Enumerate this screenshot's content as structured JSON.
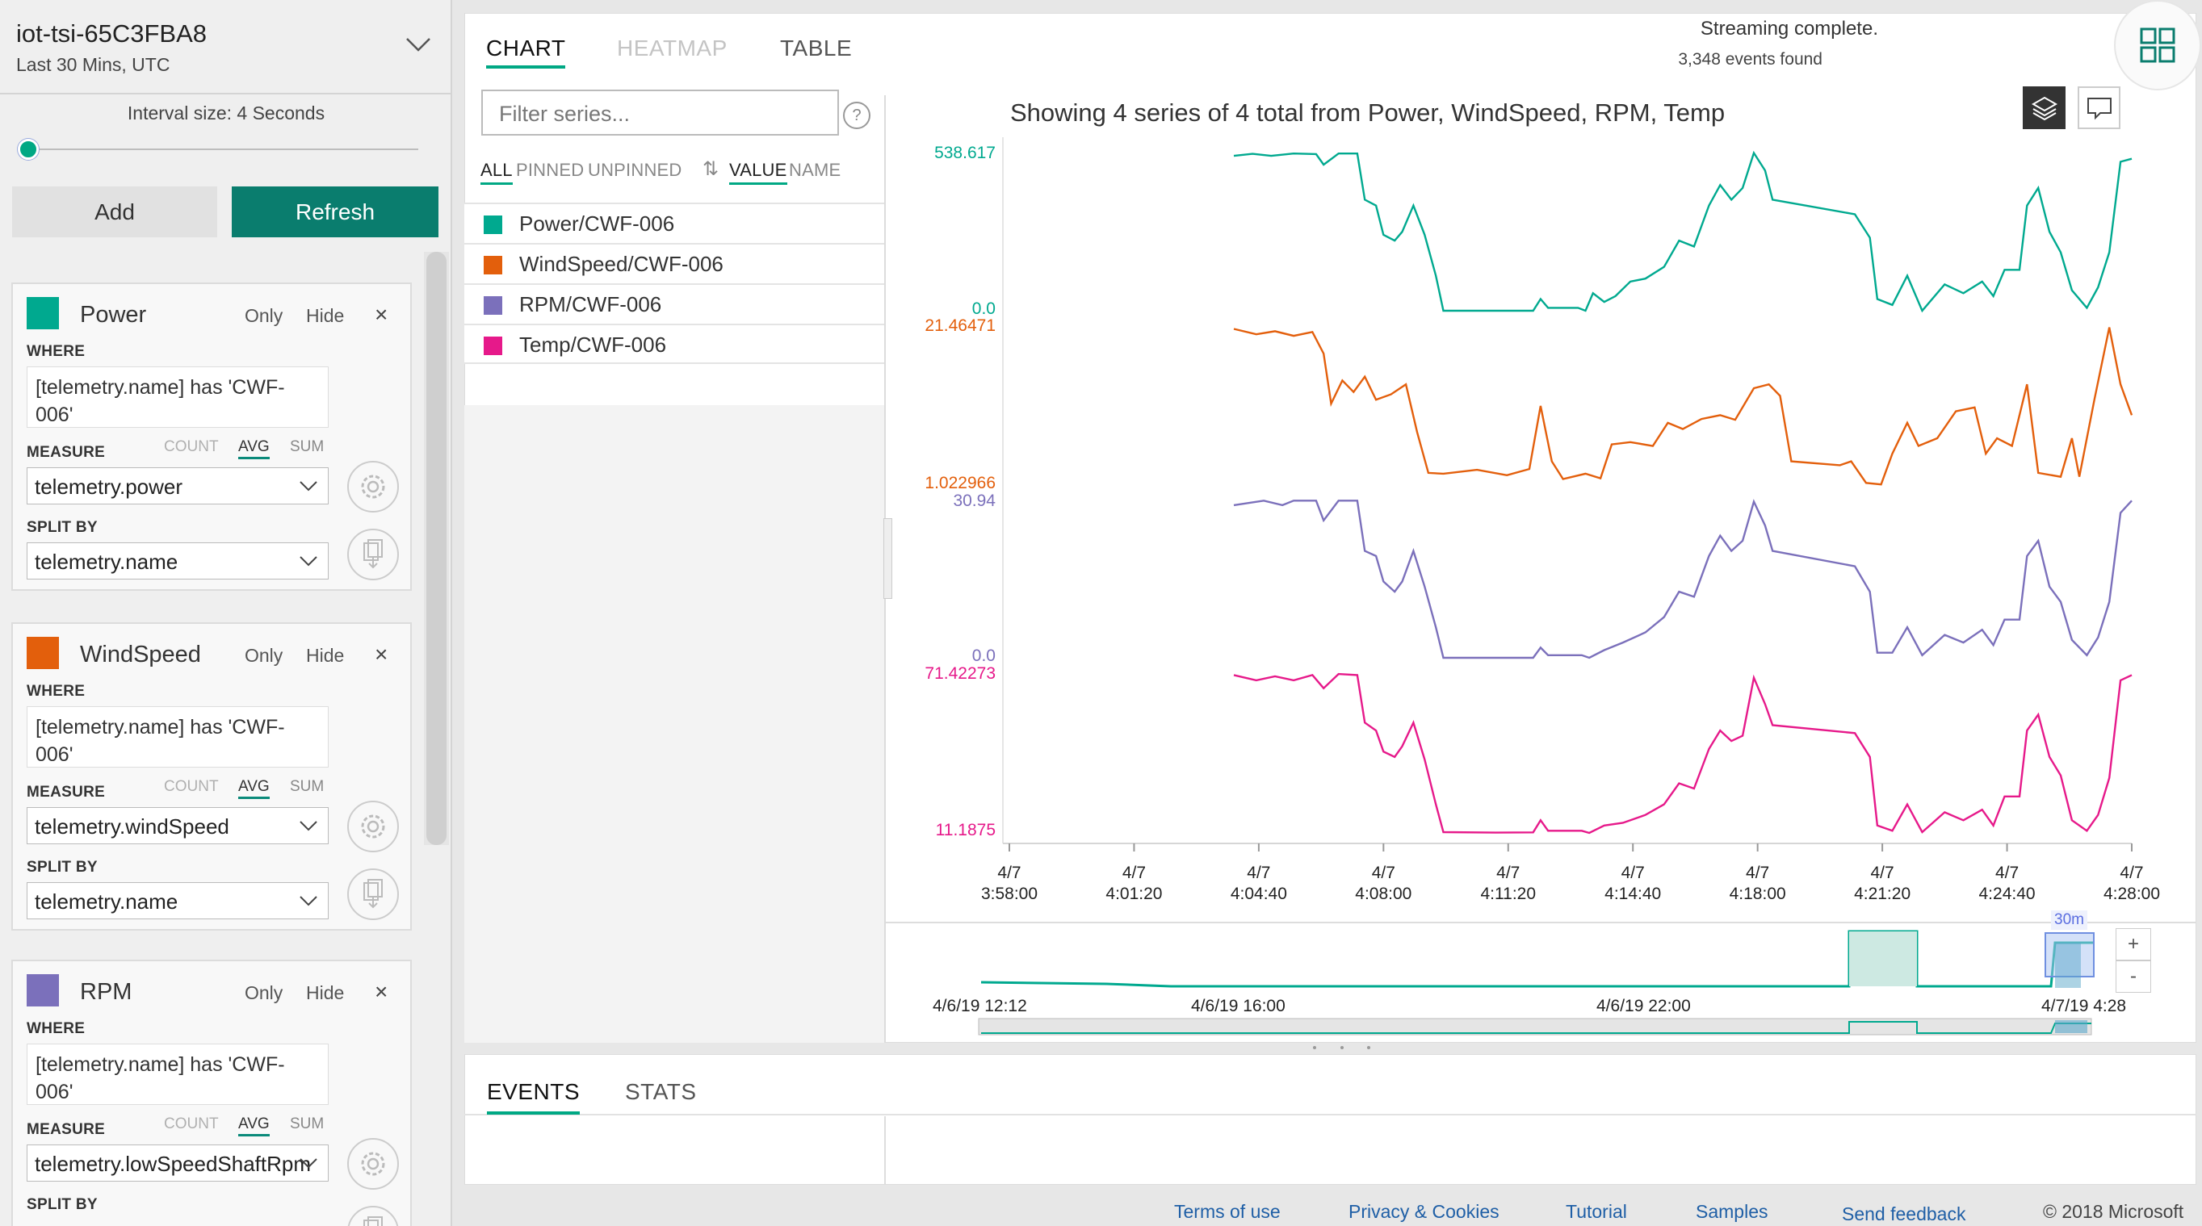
{
  "environment": {
    "name": "iot-tsi-65C3FBA8",
    "time_range": "Last 30 Mins, UTC"
  },
  "interval": {
    "label": "Interval size: 4 Seconds",
    "fraction": 0.0
  },
  "actions": {
    "add": "Add",
    "refresh": "Refresh"
  },
  "labels": {
    "only": "Only",
    "hide": "Hide",
    "close": "×",
    "where": "WHERE",
    "measure": "MEASURE",
    "split_by": "SPLIT BY",
    "count": "COUNT",
    "avg": "AVG",
    "sum": "SUM"
  },
  "cards": [
    {
      "name": "Power",
      "color": "#00a98f",
      "where": "[telemetry.name] has 'CWF-\n006'",
      "measure": "telemetry.power",
      "split": "telemetry.name"
    },
    {
      "name": "WindSpeed",
      "color": "#e35f0c",
      "where": "[telemetry.name] has 'CWF-\n006'",
      "measure": "telemetry.windSpeed",
      "split": "telemetry.name"
    },
    {
      "name": "RPM",
      "color": "#7b70bb",
      "where": "[telemetry.name] has 'CWF-\n006'",
      "measure": "telemetry.lowSpeedShaftRpm",
      "split": ""
    }
  ],
  "tabs": [
    "CHART",
    "HEATMAP",
    "TABLE"
  ],
  "status": {
    "line1": "Streaming complete.",
    "line2": "3,348 events found"
  },
  "filter": {
    "placeholder": "Filter series...",
    "help": "?"
  },
  "series_filters": [
    "ALL",
    "PINNED",
    "UNPINNED"
  ],
  "sort": {
    "icon": "⇅",
    "value": "VALUE",
    "name": "NAME"
  },
  "series_list": [
    {
      "label": "Power/CWF-006",
      "color": "#00a98f"
    },
    {
      "label": "WindSpeed/CWF-006",
      "color": "#e35f0c"
    },
    {
      "label": "RPM/CWF-006",
      "color": "#7b70bb"
    },
    {
      "label": "Temp/CWF-006",
      "color": "#e6198a"
    }
  ],
  "chart_data": {
    "type": "line",
    "title": "Showing 4 series of 4 total from Power, WindSpeed, RPM, Temp",
    "x_ticks": [
      {
        "date": "4/7",
        "time": "3:58:00"
      },
      {
        "date": "4/7",
        "time": "4:01:20"
      },
      {
        "date": "4/7",
        "time": "4:04:40"
      },
      {
        "date": "4/7",
        "time": "4:08:00"
      },
      {
        "date": "4/7",
        "time": "4:11:20"
      },
      {
        "date": "4/7",
        "time": "4:14:40"
      },
      {
        "date": "4/7",
        "time": "4:18:00"
      },
      {
        "date": "4/7",
        "time": "4:21:20"
      },
      {
        "date": "4/7",
        "time": "4:24:40"
      },
      {
        "date": "4/7",
        "time": "4:28:00"
      }
    ],
    "x_range_minutes": [
      0,
      30
    ],
    "series": [
      {
        "name": "Power/CWF-006",
        "color": "#00a98f",
        "ylim": [
          0.0,
          538.617
        ],
        "ytick_labels": [
          "538.617",
          "0.0"
        ],
        "points": [
          [
            18.0,
            530
          ],
          [
            18.5,
            537
          ],
          [
            19.0,
            530
          ],
          [
            19.6,
            538
          ],
          [
            20.2,
            536
          ],
          [
            20.4,
            500
          ],
          [
            20.8,
            538
          ],
          [
            21.3,
            538
          ],
          [
            21.5,
            380
          ],
          [
            21.8,
            360
          ],
          [
            22.0,
            260
          ],
          [
            22.3,
            240
          ],
          [
            22.5,
            270
          ],
          [
            22.8,
            360
          ],
          [
            23.1,
            260
          ],
          [
            23.4,
            120
          ],
          [
            23.6,
            0
          ],
          [
            24.5,
            0
          ],
          [
            25.5,
            0
          ],
          [
            26.0,
            0
          ],
          [
            26.2,
            40
          ],
          [
            26.4,
            10
          ],
          [
            27.2,
            10
          ],
          [
            27.4,
            0
          ],
          [
            27.6,
            60
          ],
          [
            27.9,
            30
          ],
          [
            28.2,
            50
          ],
          [
            28.6,
            100
          ],
          [
            29.0,
            110
          ],
          [
            29.5,
            150
          ],
          [
            29.9,
            240
          ],
          [
            30.3,
            220
          ],
          [
            30.7,
            360
          ],
          [
            31.0,
            430
          ],
          [
            31.3,
            380
          ],
          [
            31.6,
            420
          ],
          [
            31.9,
            540
          ],
          [
            32.2,
            480
          ],
          [
            32.4,
            380
          ],
          [
            34.6,
            330
          ],
          [
            35.0,
            250
          ],
          [
            35.2,
            40
          ],
          [
            35.6,
            20
          ],
          [
            36.0,
            120
          ],
          [
            36.4,
            0
          ],
          [
            37.0,
            90
          ],
          [
            37.5,
            60
          ],
          [
            38.0,
            100
          ],
          [
            38.3,
            50
          ],
          [
            38.6,
            140
          ],
          [
            39.0,
            140
          ],
          [
            39.2,
            360
          ],
          [
            39.5,
            420
          ],
          [
            39.8,
            270
          ],
          [
            40.1,
            200
          ],
          [
            40.4,
            70
          ],
          [
            40.8,
            10
          ],
          [
            41.1,
            80
          ],
          [
            41.4,
            200
          ],
          [
            41.7,
            510
          ],
          [
            42.0,
            520
          ]
        ]
      },
      {
        "name": "WindSpeed/CWF-006",
        "color": "#e35f0c",
        "ylim": [
          1.022966,
          21.46471
        ],
        "ytick_labels": [
          "21.46471",
          "1.022966"
        ],
        "points": [
          [
            18.0,
            21.2
          ],
          [
            18.6,
            20.5
          ],
          [
            19.1,
            20.9
          ],
          [
            19.6,
            20.3
          ],
          [
            20.1,
            20.8
          ],
          [
            20.4,
            18.0
          ],
          [
            20.6,
            11.5
          ],
          [
            20.9,
            14.5
          ],
          [
            21.2,
            13.0
          ],
          [
            21.5,
            15.0
          ],
          [
            21.8,
            12.0
          ],
          [
            22.2,
            12.7
          ],
          [
            22.6,
            14.0
          ],
          [
            22.9,
            7.8
          ],
          [
            23.2,
            2.5
          ],
          [
            23.6,
            2.4
          ],
          [
            24.5,
            2.9
          ],
          [
            25.3,
            2.2
          ],
          [
            25.9,
            3.0
          ],
          [
            26.2,
            11.2
          ],
          [
            26.5,
            4.0
          ],
          [
            26.8,
            1.7
          ],
          [
            27.4,
            2.4
          ],
          [
            27.8,
            1.8
          ],
          [
            28.1,
            6.2
          ],
          [
            28.6,
            6.5
          ],
          [
            29.2,
            6.0
          ],
          [
            29.6,
            9.0
          ],
          [
            30.0,
            8.2
          ],
          [
            30.5,
            9.5
          ],
          [
            31.0,
            10.0
          ],
          [
            31.4,
            9.4
          ],
          [
            31.9,
            13.5
          ],
          [
            32.3,
            14.0
          ],
          [
            32.6,
            12.5
          ],
          [
            32.9,
            4.0
          ],
          [
            34.2,
            3.5
          ],
          [
            34.5,
            4.0
          ],
          [
            34.9,
            1.2
          ],
          [
            35.3,
            1.0
          ],
          [
            35.6,
            5.0
          ],
          [
            36.0,
            9.0
          ],
          [
            36.3,
            6.0
          ],
          [
            36.8,
            7.0
          ],
          [
            37.3,
            10.5
          ],
          [
            37.8,
            11.0
          ],
          [
            38.1,
            5.0
          ],
          [
            38.4,
            7.0
          ],
          [
            38.8,
            6.0
          ],
          [
            39.2,
            14.0
          ],
          [
            39.5,
            2.5
          ],
          [
            40.1,
            2.0
          ],
          [
            40.4,
            7.0
          ],
          [
            40.6,
            2.0
          ],
          [
            41.0,
            12.0
          ],
          [
            41.4,
            21.4
          ],
          [
            41.7,
            14.0
          ],
          [
            42.0,
            10.0
          ]
        ]
      },
      {
        "name": "RPM/CWF-006",
        "color": "#7b70bb",
        "ylim": [
          0.0,
          30.94
        ],
        "ytick_labels": [
          "30.94",
          "0.0"
        ],
        "points": [
          [
            18.0,
            30.0
          ],
          [
            18.8,
            30.9
          ],
          [
            19.3,
            30.0
          ],
          [
            19.6,
            30.9
          ],
          [
            20.2,
            30.9
          ],
          [
            20.4,
            27.0
          ],
          [
            20.8,
            30.9
          ],
          [
            21.3,
            30.9
          ],
          [
            21.5,
            21.0
          ],
          [
            21.8,
            20.0
          ],
          [
            22.0,
            15.0
          ],
          [
            22.3,
            13.0
          ],
          [
            22.5,
            15.0
          ],
          [
            22.8,
            21.0
          ],
          [
            23.1,
            14.0
          ],
          [
            23.4,
            6.0
          ],
          [
            23.6,
            0.0
          ],
          [
            25.0,
            0.0
          ],
          [
            26.0,
            0.0
          ],
          [
            26.2,
            2.0
          ],
          [
            26.4,
            0.5
          ],
          [
            27.3,
            0.5
          ],
          [
            27.5,
            0.0
          ],
          [
            27.9,
            1.5
          ],
          [
            28.4,
            3.0
          ],
          [
            29.0,
            5.0
          ],
          [
            29.5,
            8.0
          ],
          [
            29.9,
            13.0
          ],
          [
            30.3,
            12.0
          ],
          [
            30.7,
            20.0
          ],
          [
            31.0,
            24.0
          ],
          [
            31.3,
            21.0
          ],
          [
            31.6,
            23.0
          ],
          [
            31.9,
            30.7
          ],
          [
            32.2,
            26.0
          ],
          [
            32.4,
            21.0
          ],
          [
            34.6,
            18.0
          ],
          [
            35.0,
            13.0
          ],
          [
            35.2,
            1.0
          ],
          [
            35.6,
            1.0
          ],
          [
            36.0,
            6.0
          ],
          [
            36.4,
            0.5
          ],
          [
            37.0,
            4.5
          ],
          [
            37.5,
            3.0
          ],
          [
            38.0,
            5.5
          ],
          [
            38.3,
            2.5
          ],
          [
            38.6,
            7.5
          ],
          [
            39.0,
            7.5
          ],
          [
            39.2,
            20.0
          ],
          [
            39.5,
            23.0
          ],
          [
            39.8,
            14.0
          ],
          [
            40.1,
            11.0
          ],
          [
            40.4,
            3.5
          ],
          [
            40.8,
            0.5
          ],
          [
            41.1,
            4.0
          ],
          [
            41.4,
            11.0
          ],
          [
            41.7,
            28.5
          ],
          [
            42.0,
            30.9
          ]
        ]
      },
      {
        "name": "Temp/CWF-006",
        "color": "#e6198a",
        "ylim": [
          11.1875,
          71.42273
        ],
        "ytick_labels": [
          "71.42273",
          "11.1875"
        ],
        "points": [
          [
            18.0,
            71.0
          ],
          [
            18.6,
            69.0
          ],
          [
            19.1,
            70.5
          ],
          [
            19.6,
            69.0
          ],
          [
            20.1,
            71.0
          ],
          [
            20.4,
            66.0
          ],
          [
            20.8,
            71.4
          ],
          [
            21.3,
            71.0
          ],
          [
            21.5,
            53.0
          ],
          [
            21.8,
            50.0
          ],
          [
            22.0,
            42.0
          ],
          [
            22.3,
            40.0
          ],
          [
            22.5,
            44.0
          ],
          [
            22.8,
            53.0
          ],
          [
            23.1,
            39.0
          ],
          [
            23.4,
            22.0
          ],
          [
            23.6,
            11.5
          ],
          [
            25.0,
            11.3
          ],
          [
            26.0,
            11.4
          ],
          [
            26.2,
            16.0
          ],
          [
            26.4,
            12.0
          ],
          [
            27.3,
            12.0
          ],
          [
            27.5,
            11.2
          ],
          [
            27.9,
            14.0
          ],
          [
            28.4,
            15.0
          ],
          [
            29.0,
            18.0
          ],
          [
            29.5,
            22.0
          ],
          [
            29.9,
            30.0
          ],
          [
            30.3,
            28.0
          ],
          [
            30.7,
            43.0
          ],
          [
            31.0,
            50.0
          ],
          [
            31.3,
            46.0
          ],
          [
            31.6,
            48.0
          ],
          [
            31.9,
            70.0
          ],
          [
            32.2,
            60.0
          ],
          [
            32.4,
            52.0
          ],
          [
            34.6,
            49.0
          ],
          [
            35.0,
            40.0
          ],
          [
            35.2,
            14.0
          ],
          [
            35.6,
            12.0
          ],
          [
            36.0,
            22.0
          ],
          [
            36.4,
            11.5
          ],
          [
            37.0,
            19.0
          ],
          [
            37.5,
            16.0
          ],
          [
            38.0,
            20.0
          ],
          [
            38.3,
            14.0
          ],
          [
            38.6,
            25.0
          ],
          [
            39.0,
            25.0
          ],
          [
            39.2,
            50.0
          ],
          [
            39.5,
            56.0
          ],
          [
            39.8,
            40.0
          ],
          [
            40.1,
            33.0
          ],
          [
            40.4,
            16.0
          ],
          [
            40.8,
            12.0
          ],
          [
            41.1,
            18.0
          ],
          [
            41.4,
            32.0
          ],
          [
            41.7,
            69.0
          ],
          [
            42.0,
            71.0
          ]
        ]
      }
    ],
    "overview": {
      "labels": [
        "4/6/19 12:12",
        "4/6/19 16:00",
        "4/6/19 22:00",
        "4/7/19 4:28"
      ],
      "window_label": "30m",
      "zoom_in": "+",
      "zoom_out": "-"
    }
  },
  "bottom_tabs": [
    "EVENTS",
    "STATS"
  ],
  "footer": {
    "links": [
      "Terms of use",
      "Privacy & Cookies",
      "Tutorial",
      "Samples",
      "Send feedback"
    ],
    "copyright": "© 2018 Microsoft"
  }
}
